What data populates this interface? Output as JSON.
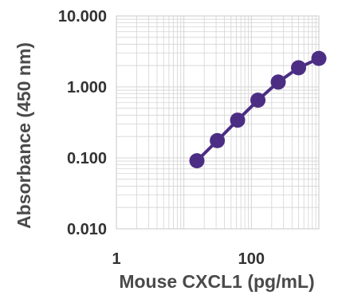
{
  "chart_data": {
    "type": "line",
    "title": "",
    "xlabel": "Mouse CXCL1 (pg/mL)",
    "ylabel": "Absorbance (450 nm)",
    "xscale": "log",
    "yscale": "log",
    "xlim": [
      1,
      1000
    ],
    "ylim": [
      0.01,
      10
    ],
    "xticks": [
      "1",
      "100"
    ],
    "yticks": [
      "10.000",
      "1.000",
      "0.100",
      "0.010"
    ],
    "grid": "on (major and minor)",
    "legend": "none",
    "series": [
      {
        "color": "#4b2e83",
        "marker": "circle",
        "x": [
          15.6,
          31.3,
          62.5,
          125,
          250,
          500,
          1000
        ],
        "y": [
          0.091,
          0.175,
          0.34,
          0.65,
          1.17,
          1.86,
          2.52
        ]
      }
    ]
  }
}
